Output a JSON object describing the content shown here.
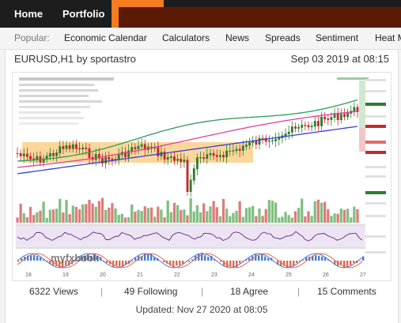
{
  "nav": {
    "home": "Home",
    "portfolio": "Portfolio"
  },
  "subnav": {
    "label": "Popular:",
    "items": [
      "Economic Calendar",
      "Calculators",
      "News",
      "Spreads",
      "Sentiment",
      "Heat Map"
    ]
  },
  "card": {
    "title": "EURUSD,H1 by sportastro",
    "date": "Sep 03 2019 at 08:15",
    "stats": {
      "views": "6322 Views",
      "following": "49 Following",
      "agree": "18 Agree",
      "comments": "15 Comments"
    },
    "updated": "Updated: Nov 27 2020 at 08:05"
  },
  "chart_data": {
    "type": "line",
    "x_ticks": [
      "18",
      "19",
      "20",
      "21",
      "22",
      "23",
      "24",
      "25",
      "26",
      "27"
    ],
    "watermark": "myfxbook",
    "colors": {
      "candle_up": "#2e7d32",
      "candle_down": "#c62828",
      "zone": "#f8b64a",
      "ma_blue": "#3b3fd6",
      "ma_pink": "#e0409a",
      "ma_green": "#2a9d5a",
      "vol_up": "#7fbf7f",
      "vol_down": "#e07b7b",
      "osc": "#5b2a86",
      "macd_pos": "#4a7bd4",
      "macd_neg": "#e06a4a"
    }
  },
  "colors": {
    "topbar": "#1d1d1d",
    "accent_orange": "#f57c1f",
    "maroon": "#5b1a06"
  }
}
